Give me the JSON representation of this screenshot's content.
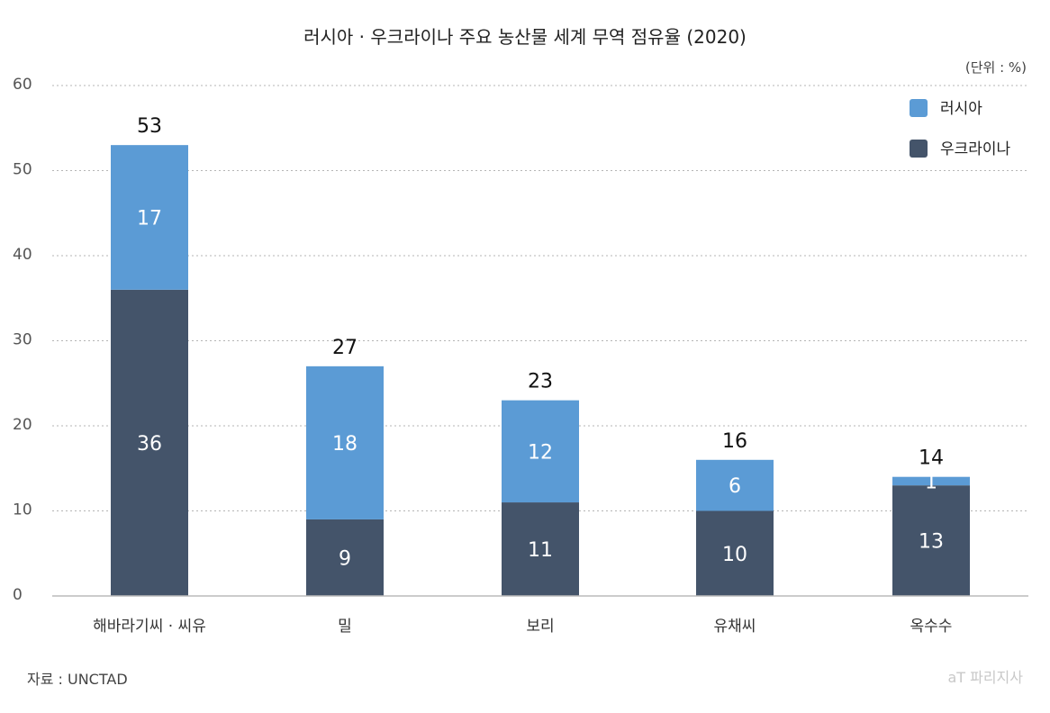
{
  "chart_data": {
    "type": "bar",
    "stacked": true,
    "title": "러시아 · 우크라이나 주요 농산물 세계 무역 점유율 (2020)",
    "unit_note": "(단위 : %)",
    "categories": [
      "해바라기씨 · 씨유",
      "밀",
      "보리",
      "유채씨",
      "옥수수"
    ],
    "series": [
      {
        "name": "우크라이나",
        "values": [
          36,
          9,
          11,
          10,
          13
        ],
        "color": "#44546a"
      },
      {
        "name": "러시아",
        "values": [
          17,
          18,
          12,
          6,
          1
        ],
        "color": "#5b9bd5"
      }
    ],
    "totals": [
      53,
      27,
      23,
      16,
      14
    ],
    "y_ticks": [
      0,
      10,
      20,
      30,
      40,
      50,
      60
    ],
    "ylim": [
      0,
      60
    ],
    "grid": true,
    "legend_position": "top-right",
    "legend_order": [
      "러시아",
      "우크라이나"
    ]
  },
  "source": "자료 : UNCTAD",
  "watermark": "aT 파리지사",
  "colors": {
    "label_on_bar": "#ffffff",
    "axis_text": "#555555",
    "grid": "#b5b5b5",
    "baseline": "#bbbbbb"
  }
}
